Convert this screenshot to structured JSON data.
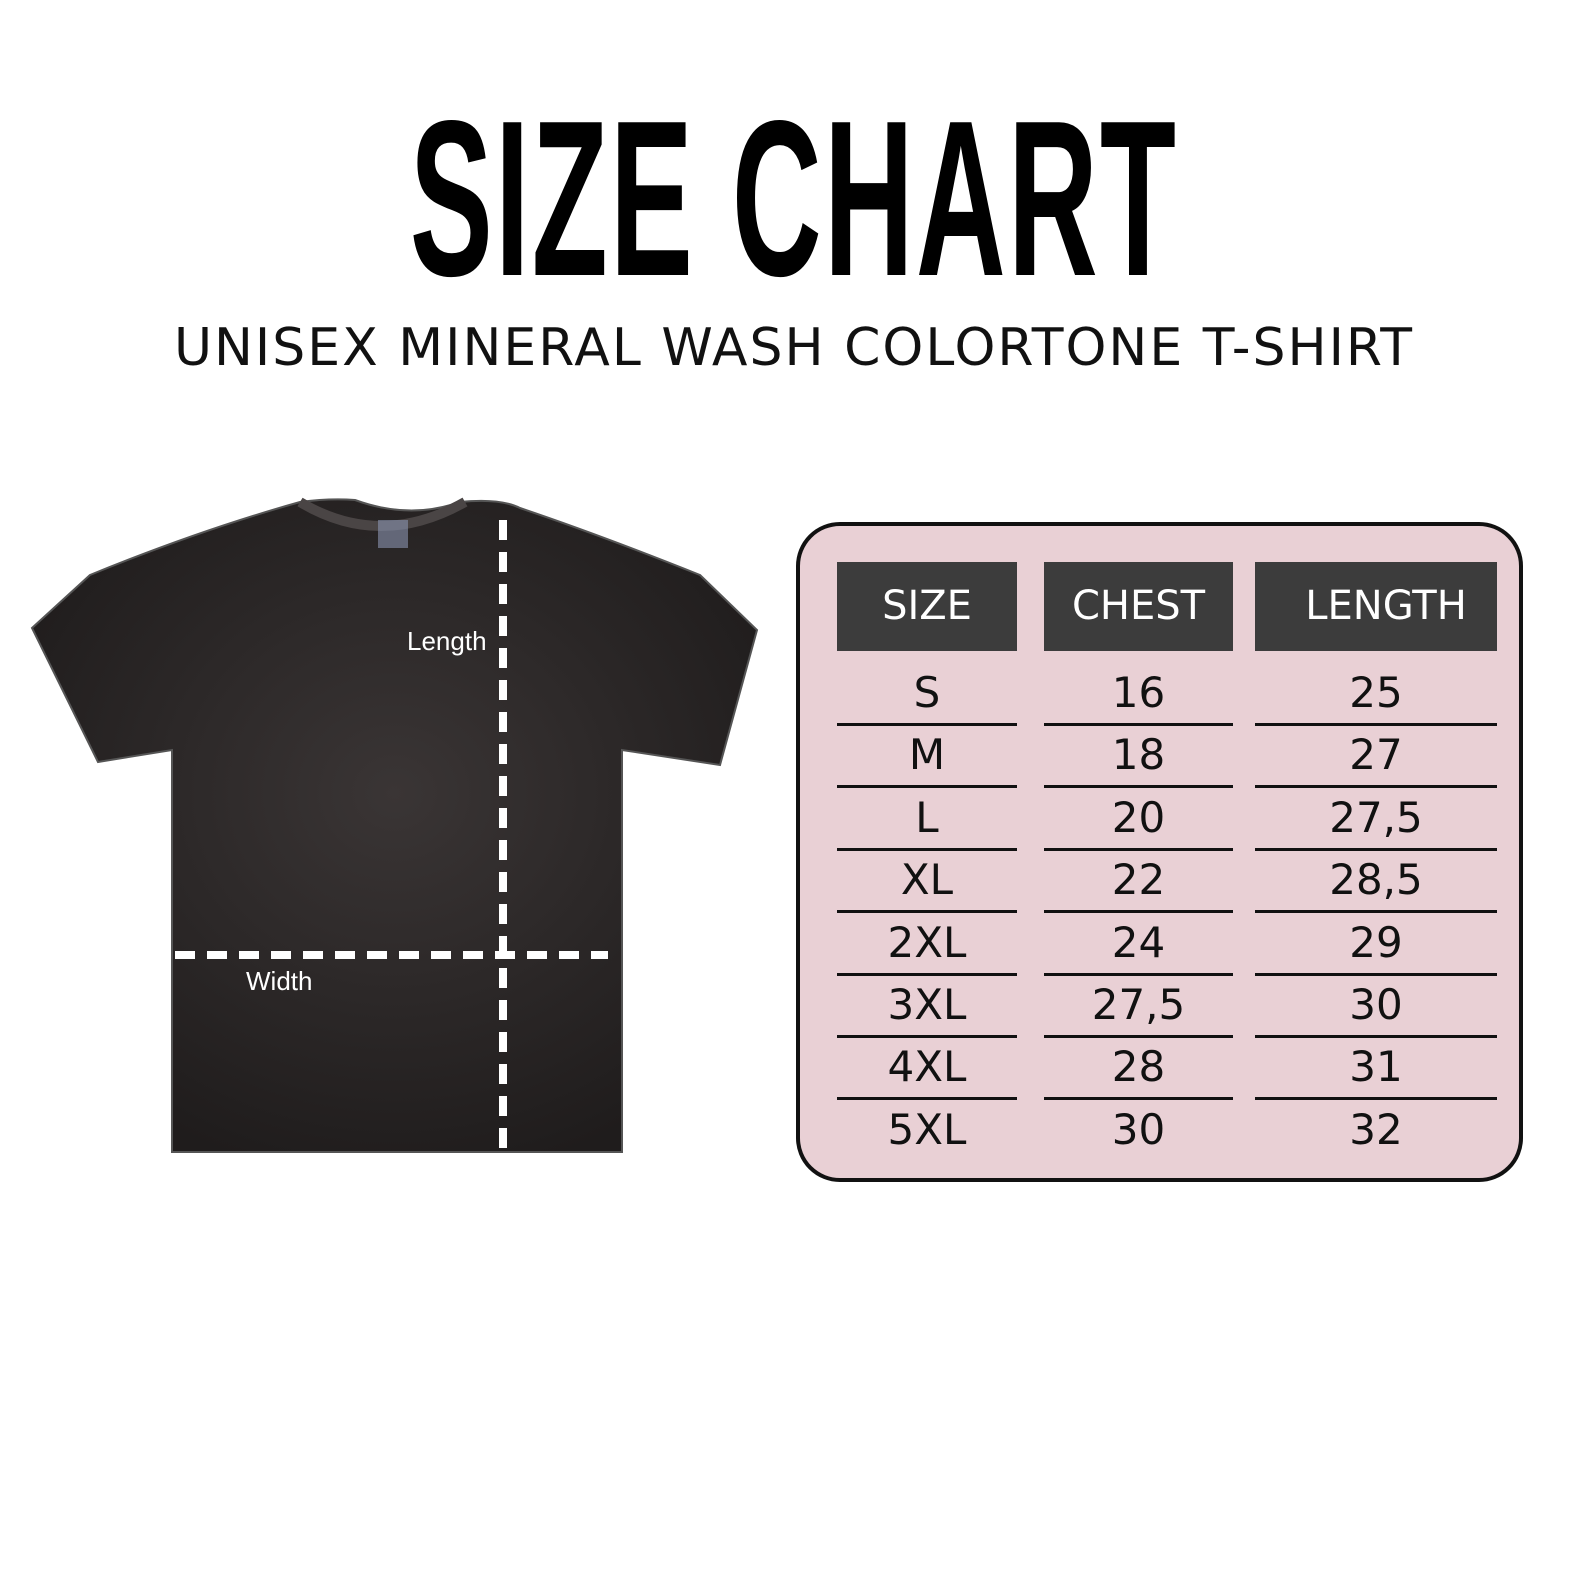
{
  "title": "SIZE CHART",
  "subtitle": "UNISEX MINERAL WASH COLORTONE T-SHIRT",
  "shirt": {
    "length_label": "Length",
    "width_label": "Width",
    "color": "#2a2626"
  },
  "table": {
    "headers": [
      "SIZE",
      "CHEST",
      "LENGTH"
    ],
    "rows": [
      [
        "S",
        "16",
        "25"
      ],
      [
        "M",
        "18",
        "27"
      ],
      [
        "L",
        "20",
        "27,5"
      ],
      [
        "XL",
        "22",
        "28,5"
      ],
      [
        "2XL",
        "24",
        "29"
      ],
      [
        "3XL",
        "27,5",
        "30"
      ],
      [
        "4XL",
        "28",
        "31"
      ],
      [
        "5XL",
        "30",
        "32"
      ]
    ],
    "background": "#e9d0d5",
    "header_color": "#3c3c3c"
  }
}
